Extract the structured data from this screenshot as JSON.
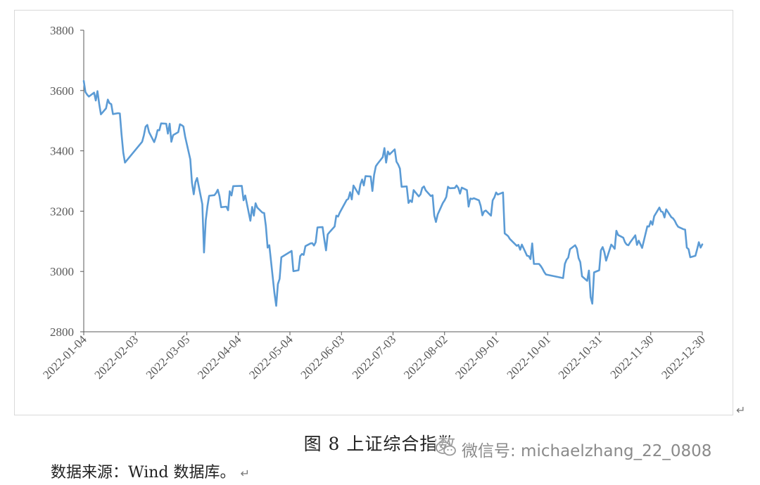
{
  "caption": "图 8  上证综合指数",
  "source": "数据来源：Wind 数据库。",
  "return_mark": "↵",
  "watermark": {
    "icon": "wechat-icon",
    "text": "微信号: michaelzhang_22_0808"
  },
  "colors": {
    "line": "#5b9bd5",
    "axis": "#595959",
    "text": "#595959",
    "frame": "#d9d9d9"
  },
  "chart_data": {
    "type": "line",
    "grid": false,
    "legend": "none",
    "ylim": [
      2800,
      3800
    ],
    "yticks": [
      2800,
      3000,
      3200,
      3400,
      3600,
      3800
    ],
    "xlim": [
      "2022-01-04",
      "2022-12-30"
    ],
    "xtick_labels": [
      "2022-01-04",
      "2022-02-03",
      "2022-03-05",
      "2022-04-04",
      "2022-05-04",
      "2022-06-03",
      "2022-07-03",
      "2022-08-02",
      "2022-09-01",
      "2022-10-01",
      "2022-10-31",
      "2022-11-30",
      "2022-12-30"
    ],
    "series": [
      {
        "x": [
          "2022-01-04",
          "2022-01-05",
          "2022-01-06",
          "2022-01-07",
          "2022-01-10",
          "2022-01-11",
          "2022-01-12",
          "2022-01-13",
          "2022-01-14",
          "2022-01-17",
          "2022-01-18",
          "2022-01-19",
          "2022-01-20",
          "2022-01-21",
          "2022-01-24",
          "2022-01-25",
          "2022-01-26",
          "2022-01-27",
          "2022-01-28",
          "2022-02-07",
          "2022-02-08",
          "2022-02-09",
          "2022-02-10",
          "2022-02-11",
          "2022-02-14",
          "2022-02-15",
          "2022-02-16",
          "2022-02-17",
          "2022-02-18",
          "2022-02-21",
          "2022-02-22",
          "2022-02-23",
          "2022-02-24",
          "2022-02-25",
          "2022-02-28",
          "2022-03-01",
          "2022-03-02",
          "2022-03-03",
          "2022-03-04",
          "2022-03-07",
          "2022-03-08",
          "2022-03-09",
          "2022-03-10",
          "2022-03-11",
          "2022-03-14",
          "2022-03-15",
          "2022-03-16",
          "2022-03-17",
          "2022-03-18",
          "2022-03-21",
          "2022-03-22",
          "2022-03-23",
          "2022-03-24",
          "2022-03-25",
          "2022-03-28",
          "2022-03-29",
          "2022-03-30",
          "2022-03-31",
          "2022-04-01",
          "2022-04-06",
          "2022-04-07",
          "2022-04-08",
          "2022-04-11",
          "2022-04-12",
          "2022-04-13",
          "2022-04-14",
          "2022-04-15",
          "2022-04-18",
          "2022-04-19",
          "2022-04-20",
          "2022-04-21",
          "2022-04-22",
          "2022-04-25",
          "2022-04-26",
          "2022-04-27",
          "2022-04-28",
          "2022-04-29",
          "2022-05-05",
          "2022-05-06",
          "2022-05-09",
          "2022-05-10",
          "2022-05-11",
          "2022-05-12",
          "2022-05-13",
          "2022-05-16",
          "2022-05-17",
          "2022-05-18",
          "2022-05-19",
          "2022-05-20",
          "2022-05-23",
          "2022-05-24",
          "2022-05-25",
          "2022-05-26",
          "2022-05-27",
          "2022-05-30",
          "2022-05-31",
          "2022-06-01",
          "2022-06-02",
          "2022-06-06",
          "2022-06-07",
          "2022-06-08",
          "2022-06-09",
          "2022-06-10",
          "2022-06-13",
          "2022-06-14",
          "2022-06-15",
          "2022-06-16",
          "2022-06-17",
          "2022-06-20",
          "2022-06-21",
          "2022-06-22",
          "2022-06-23",
          "2022-06-24",
          "2022-06-27",
          "2022-06-28",
          "2022-06-29",
          "2022-06-30",
          "2022-07-01",
          "2022-07-04",
          "2022-07-05",
          "2022-07-06",
          "2022-07-07",
          "2022-07-08",
          "2022-07-11",
          "2022-07-12",
          "2022-07-13",
          "2022-07-14",
          "2022-07-15",
          "2022-07-18",
          "2022-07-19",
          "2022-07-20",
          "2022-07-21",
          "2022-07-22",
          "2022-07-25",
          "2022-07-26",
          "2022-07-27",
          "2022-07-28",
          "2022-07-29",
          "2022-08-01",
          "2022-08-02",
          "2022-08-03",
          "2022-08-04",
          "2022-08-05",
          "2022-08-08",
          "2022-08-09",
          "2022-08-10",
          "2022-08-11",
          "2022-08-12",
          "2022-08-15",
          "2022-08-16",
          "2022-08-17",
          "2022-08-18",
          "2022-08-19",
          "2022-08-22",
          "2022-08-23",
          "2022-08-24",
          "2022-08-25",
          "2022-08-26",
          "2022-08-29",
          "2022-08-30",
          "2022-08-31",
          "2022-09-01",
          "2022-09-02",
          "2022-09-05",
          "2022-09-06",
          "2022-09-07",
          "2022-09-08",
          "2022-09-09",
          "2022-09-13",
          "2022-09-14",
          "2022-09-15",
          "2022-09-16",
          "2022-09-19",
          "2022-09-20",
          "2022-09-21",
          "2022-09-22",
          "2022-09-23",
          "2022-09-26",
          "2022-09-27",
          "2022-09-28",
          "2022-09-29",
          "2022-09-30",
          "2022-10-10",
          "2022-10-11",
          "2022-10-12",
          "2022-10-13",
          "2022-10-14",
          "2022-10-17",
          "2022-10-18",
          "2022-10-19",
          "2022-10-20",
          "2022-10-21",
          "2022-10-24",
          "2022-10-25",
          "2022-10-26",
          "2022-10-27",
          "2022-10-28",
          "2022-10-31",
          "2022-11-01",
          "2022-11-02",
          "2022-11-03",
          "2022-11-04",
          "2022-11-07",
          "2022-11-08",
          "2022-11-09",
          "2022-11-10",
          "2022-11-11",
          "2022-11-14",
          "2022-11-15",
          "2022-11-16",
          "2022-11-17",
          "2022-11-18",
          "2022-11-21",
          "2022-11-22",
          "2022-11-23",
          "2022-11-24",
          "2022-11-25",
          "2022-11-28",
          "2022-11-29",
          "2022-11-30",
          "2022-12-01",
          "2022-12-02",
          "2022-12-05",
          "2022-12-06",
          "2022-12-07",
          "2022-12-08",
          "2022-12-09",
          "2022-12-12",
          "2022-12-13",
          "2022-12-14",
          "2022-12-15",
          "2022-12-16",
          "2022-12-19",
          "2022-12-20",
          "2022-12-21",
          "2022-12-22",
          "2022-12-23",
          "2022-12-26",
          "2022-12-27",
          "2022-12-28",
          "2022-12-29",
          "2022-12-30"
        ],
        "y": [
          3632,
          3595,
          3586,
          3580,
          3593,
          3567,
          3598,
          3555,
          3521,
          3541,
          3570,
          3558,
          3555,
          3522,
          3525,
          3524,
          3455,
          3394,
          3361,
          3430,
          3452,
          3480,
          3486,
          3462,
          3429,
          3446,
          3469,
          3468,
          3491,
          3490,
          3457,
          3490,
          3430,
          3452,
          3462,
          3488,
          3485,
          3481,
          3447,
          3372,
          3294,
          3256,
          3296,
          3310,
          3223,
          3063,
          3170,
          3216,
          3251,
          3253,
          3260,
          3271,
          3250,
          3213,
          3215,
          3203,
          3266,
          3252,
          3283,
          3284,
          3236,
          3252,
          3168,
          3214,
          3185,
          3226,
          3212,
          3195,
          3194,
          3151,
          3079,
          3087,
          2928,
          2886,
          2958,
          2975,
          3047,
          3068,
          3001,
          3004,
          3051,
          3058,
          3055,
          3084,
          3093,
          3094,
          3086,
          3097,
          3146,
          3147,
          3107,
          3070,
          3123,
          3130,
          3149,
          3185,
          3182,
          3195,
          3237,
          3241,
          3263,
          3239,
          3285,
          3256,
          3288,
          3305,
          3285,
          3316,
          3315,
          3267,
          3320,
          3349,
          3357,
          3379,
          3409,
          3361,
          3398,
          3388,
          3405,
          3364,
          3355,
          3341,
          3281,
          3282,
          3227,
          3236,
          3230,
          3270,
          3249,
          3256,
          3277,
          3282,
          3269,
          3250,
          3253,
          3186,
          3164,
          3189,
          3227,
          3236,
          3247,
          3281,
          3276,
          3277,
          3285,
          3277,
          3258,
          3278,
          3270,
          3215,
          3242,
          3240,
          3243,
          3236,
          3218,
          3186,
          3199,
          3202,
          3185,
          3236,
          3246,
          3262,
          3255,
          3262,
          3126,
          3122,
          3117,
          3108,
          3085,
          3088,
          3072,
          3089,
          3052,
          3051,
          3041,
          3093,
          3025,
          3025,
          3018,
          3009,
          2998,
          2990,
          2978,
          3025,
          3039,
          3046,
          3074,
          3087,
          3076,
          3044,
          3031,
          2984,
          2969,
          3003,
          2915,
          2893,
          2997,
          3004,
          3070,
          3081,
          3064,
          3036,
          3089,
          3083,
          3075,
          3135,
          3121,
          3112,
          3097,
          3089,
          3087,
          3096,
          3120,
          3088,
          3102,
          3090,
          3078,
          3150,
          3149,
          3167,
          3155,
          3183,
          3212,
          3199,
          3197,
          3179,
          3206,
          3180,
          3176,
          3168,
          3156,
          3148,
          3140,
          3139,
          3079,
          3074,
          3047,
          3052,
          3074,
          3097,
          3079,
          3090
        ]
      }
    ]
  }
}
